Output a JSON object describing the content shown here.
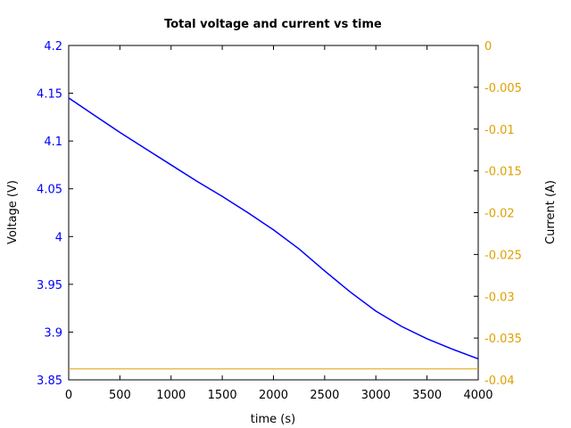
{
  "chart_data": {
    "type": "line",
    "title": "Total voltage and current vs time",
    "xlabel": "time (s)",
    "ylabel_left": "Voltage (V)",
    "ylabel_right": "Current (A)",
    "xlim": [
      0,
      4000
    ],
    "ylim_left": [
      3.85,
      4.2
    ],
    "ylim_right": [
      -0.04,
      0
    ],
    "x_ticks": [
      "0",
      "500",
      "1000",
      "1500",
      "2000",
      "2500",
      "3000",
      "3500",
      "4000"
    ],
    "y_left_ticks": [
      "3.85",
      "3.9",
      "3.95",
      "4",
      "4.05",
      "4.1",
      "4.15",
      "4.2"
    ],
    "y_right_ticks": [
      "-0.04",
      "-0.035",
      "-0.03",
      "-0.025",
      "-0.02",
      "-0.015",
      "-0.01",
      "-0.005",
      "0"
    ],
    "grid": false,
    "colors": {
      "voltage": "#0000ff",
      "current": "#e0a000"
    },
    "series": [
      {
        "axis": "left",
        "x": [
          0,
          250,
          500,
          750,
          1000,
          1250,
          1500,
          1750,
          2000,
          2250,
          2500,
          2750,
          3000,
          3250,
          3500,
          3750,
          4000
        ],
        "values": [
          4.145,
          4.127,
          4.109,
          4.092,
          4.075,
          4.058,
          4.042,
          4.025,
          4.007,
          3.987,
          3.964,
          3.942,
          3.922,
          3.906,
          3.893,
          3.882,
          3.872
        ]
      },
      {
        "axis": "right",
        "x": [
          0,
          4000
        ],
        "values": [
          -0.0387,
          -0.0387
        ]
      }
    ]
  }
}
